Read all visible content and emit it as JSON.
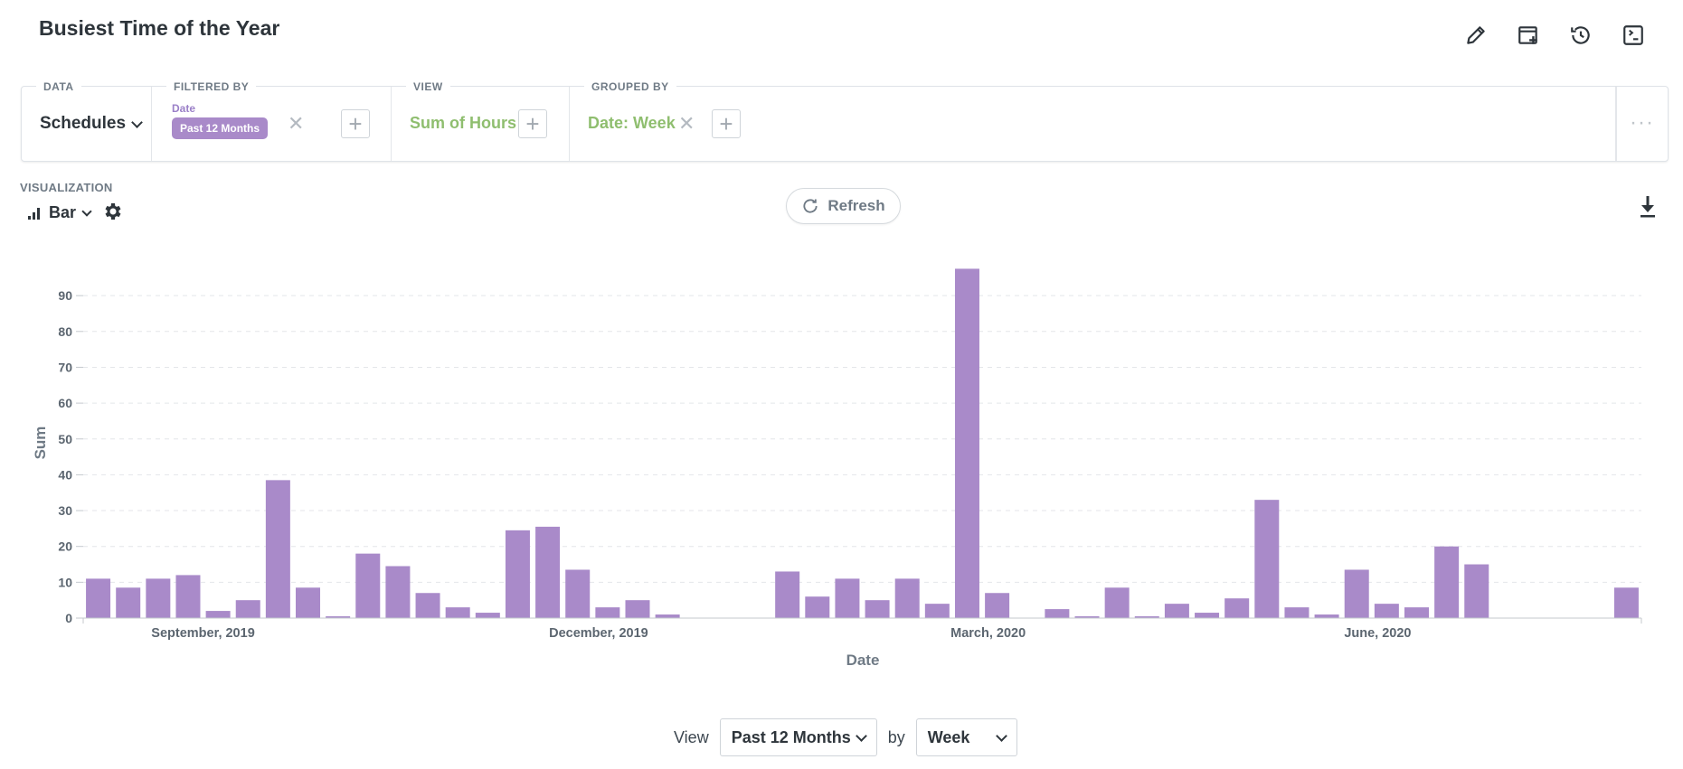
{
  "page": {
    "title": "Busiest Time of the Year"
  },
  "icons": [
    "pencil-icon",
    "add-to-dashboard-icon",
    "history-icon",
    "terminal-icon"
  ],
  "query": {
    "data": {
      "label": "DATA",
      "value": "Schedules"
    },
    "filter": {
      "label": "FILTERED BY",
      "field": "Date",
      "value": "Past 12 Months"
    },
    "view": {
      "label": "VIEW",
      "value": "Sum of Hours"
    },
    "group": {
      "label": "GROUPED BY",
      "value": "Date: Week"
    },
    "more": "···"
  },
  "visualization": {
    "label": "VISUALIZATION",
    "type": "Bar"
  },
  "refresh": {
    "label": "Refresh"
  },
  "colors": {
    "bar": "#a98ac9",
    "accent_green": "#8fbe6f",
    "chip": "#a98ac9"
  },
  "chart_data": {
    "type": "bar",
    "xlabel": "Date",
    "ylabel": "Sum",
    "ylim": [
      0,
      98
    ],
    "yticks": [
      0,
      10,
      20,
      30,
      40,
      50,
      60,
      70,
      80,
      90
    ],
    "x_tick_labels": [
      {
        "label": "September, 2019",
        "week_index": 3.5
      },
      {
        "label": "December, 2019",
        "week_index": 16.7
      },
      {
        "label": "March, 2020",
        "week_index": 29.7
      },
      {
        "label": "June, 2020",
        "week_index": 42.7
      }
    ],
    "grid": true,
    "week_count": 52,
    "values": [
      11,
      8.5,
      11,
      12,
      2,
      5,
      38.5,
      8.5,
      0.5,
      18,
      14.5,
      7,
      3,
      1.5,
      24.5,
      25.5,
      13.5,
      3,
      5,
      1,
      0,
      0,
      0,
      13,
      6,
      11,
      5,
      11,
      4,
      97.5,
      7,
      0,
      2.5,
      0.5,
      8.5,
      0.5,
      4,
      1.5,
      5.5,
      33,
      3,
      1,
      13.5,
      4,
      3,
      20,
      15,
      0,
      0,
      0,
      0,
      8.5
    ]
  },
  "bottom": {
    "view_label": "View",
    "period": "Past 12 Months",
    "by_label": "by",
    "unit": "Week"
  }
}
